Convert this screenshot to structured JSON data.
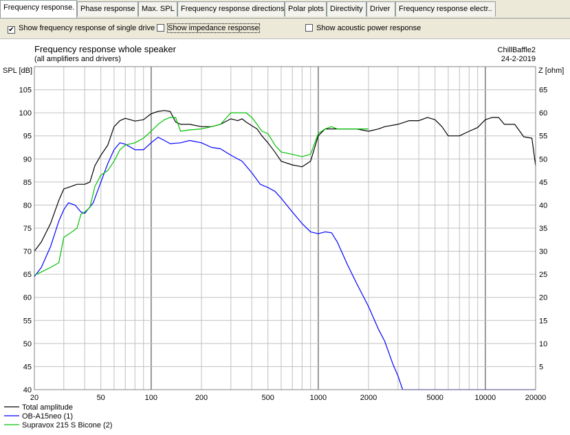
{
  "tabs": [
    {
      "label": "Frequency response.",
      "active": true
    },
    {
      "label": "Phase response",
      "active": false
    },
    {
      "label": "Max. SPL",
      "active": false
    },
    {
      "label": "Frequency response directions",
      "active": false
    },
    {
      "label": "Polar plots",
      "active": false
    },
    {
      "label": "Directivity",
      "active": false
    },
    {
      "label": "Driver",
      "active": false
    },
    {
      "label": "Frequency response electr..",
      "active": false
    }
  ],
  "options": [
    {
      "label": "Show frequency response of single drive",
      "checked": true
    },
    {
      "label": "Show impedance response",
      "checked": false
    },
    {
      "label": "Show acoustic power response",
      "checked": false
    }
  ],
  "chart_data": {
    "type": "line",
    "title": "Frequency response whole speaker",
    "subtitle": "(all amplifiers and drivers)",
    "project": "ChillBaffle2",
    "date": "24-2-2019",
    "ylabel": "SPL [dB]",
    "y2label": "Z [ohm]",
    "xscale": "log",
    "xlim": [
      20,
      20000
    ],
    "ylim": [
      40,
      110
    ],
    "y2lim": [
      0,
      70
    ],
    "xticks": [
      20,
      50,
      100,
      200,
      500,
      1000,
      2000,
      5000,
      10000,
      20000
    ],
    "yticks": [
      40,
      45,
      50,
      55,
      60,
      65,
      70,
      75,
      80,
      85,
      90,
      95,
      100,
      105
    ],
    "y2ticks": [
      5,
      10,
      15,
      20,
      25,
      30,
      35,
      40,
      45,
      50,
      55,
      60,
      65
    ],
    "grid": true,
    "legend_position": "bottom-left",
    "colors": {
      "grid_major": "#808080",
      "grid_minor": "#c0c0c0",
      "total": "#000000",
      "driver1": "#0000ff",
      "driver2": "#00c000"
    },
    "series": [
      {
        "name": "Total amplitude",
        "color": "#000000",
        "x": [
          20,
          22,
          25,
          28,
          30,
          33,
          36,
          40,
          43,
          46,
          50,
          55,
          60,
          65,
          70,
          75,
          80,
          90,
          100,
          110,
          120,
          130,
          140,
          150,
          170,
          200,
          230,
          260,
          300,
          330,
          350,
          370,
          400,
          430,
          460,
          500,
          550,
          600,
          700,
          800,
          900,
          1000,
          1100,
          1200,
          1300,
          1500,
          1700,
          2000,
          2300,
          2500,
          3000,
          3500,
          4000,
          4500,
          5000,
          5500,
          6000,
          7000,
          8000,
          9000,
          10000,
          11000,
          12000,
          13000,
          15000,
          17000,
          19000,
          20000
        ],
        "y": [
          70,
          72,
          76,
          81,
          83.5,
          84,
          84.5,
          84.5,
          85,
          88.5,
          90.8,
          93,
          97,
          98.3,
          98.8,
          98.5,
          98.2,
          98.5,
          99.8,
          100.3,
          100.5,
          100.3,
          98,
          97.5,
          97.5,
          97,
          97,
          97.5,
          98.7,
          98.3,
          98.7,
          98,
          97.2,
          96.5,
          95,
          93.5,
          91.5,
          89.5,
          88.7,
          88.3,
          89.5,
          95,
          96.5,
          96.5,
          96.5,
          96.5,
          96.5,
          96,
          96.5,
          97,
          97.5,
          98.3,
          98.3,
          99,
          98.5,
          97,
          95,
          95,
          96,
          96.8,
          98.5,
          99,
          99,
          97.5,
          97.5,
          94.8,
          94.5,
          88.5
        ]
      },
      {
        "name": "OB-A15neo (1)",
        "color": "#0000ff",
        "x": [
          20,
          22,
          25,
          28,
          30,
          32,
          35,
          38,
          40,
          45,
          50,
          55,
          60,
          65,
          70,
          80,
          90,
          100,
          110,
          120,
          130,
          150,
          170,
          200,
          230,
          260,
          300,
          350,
          400,
          450,
          500,
          550,
          600,
          700,
          800,
          900,
          1000,
          1100,
          1200,
          1300,
          1500,
          1700,
          2000,
          2300,
          2500,
          2800,
          3000,
          3200,
          3500,
          5000,
          10000,
          20000
        ],
        "y": [
          64.5,
          66.5,
          71,
          76.5,
          79,
          80.5,
          80,
          78.5,
          78.2,
          80.5,
          85,
          89,
          92,
          93.5,
          93.2,
          92,
          92,
          93.5,
          94.7,
          94,
          93.3,
          93.5,
          94,
          93.5,
          92.5,
          92.2,
          90.8,
          89.5,
          87,
          84.5,
          83.8,
          83,
          81.5,
          78.5,
          76,
          74.2,
          73.8,
          74.2,
          74,
          72,
          67,
          63,
          58,
          53,
          50.5,
          45.5,
          43,
          40,
          40,
          40,
          40,
          40
        ]
      },
      {
        "name": "Supravox 215 S Bicone (2)",
        "color": "#00c000",
        "x": [
          20,
          22,
          25,
          28,
          30,
          33,
          36,
          38,
          40,
          43,
          46,
          50,
          55,
          60,
          65,
          70,
          80,
          90,
          100,
          110,
          120,
          130,
          140,
          150,
          170,
          200,
          230,
          260,
          300,
          330,
          350,
          370,
          400,
          430,
          460,
          500,
          550,
          600,
          700,
          800,
          900,
          1000,
          1100,
          1200,
          1300,
          1500,
          1700,
          2000
        ],
        "y": [
          64.8,
          65.5,
          66.5,
          67.5,
          73,
          74,
          75,
          78,
          78.5,
          79.5,
          84,
          86.5,
          87.5,
          89.5,
          92,
          93,
          93.5,
          94.5,
          96,
          97.5,
          98.5,
          99,
          99,
          96,
          96.3,
          96.5,
          97,
          97.5,
          100,
          100,
          100,
          100,
          99,
          97.5,
          96,
          95.5,
          93,
          91.5,
          91,
          90.5,
          91,
          95.5,
          96.5,
          97,
          96.5,
          96.5,
          96.5,
          96.5
        ]
      }
    ]
  }
}
